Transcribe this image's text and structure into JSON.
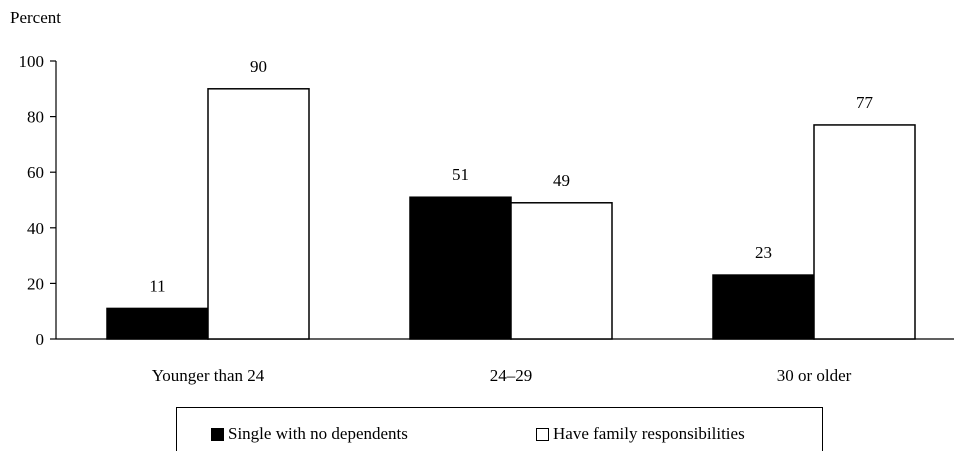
{
  "chart_data": {
    "type": "bar",
    "ylabel": "Percent",
    "ylim": [
      0,
      100
    ],
    "yticks": [
      0,
      20,
      40,
      60,
      80,
      100
    ],
    "categories": [
      "Younger than 24",
      "24–29",
      "30 or older"
    ],
    "series": [
      {
        "name": "Single with no dependents",
        "values": [
          11,
          51,
          23
        ],
        "color": "#000000"
      },
      {
        "name": "Have family responsibilities",
        "values": [
          90,
          49,
          77
        ],
        "color": "#ffffff"
      }
    ],
    "grid": false,
    "legend": "bottom"
  }
}
